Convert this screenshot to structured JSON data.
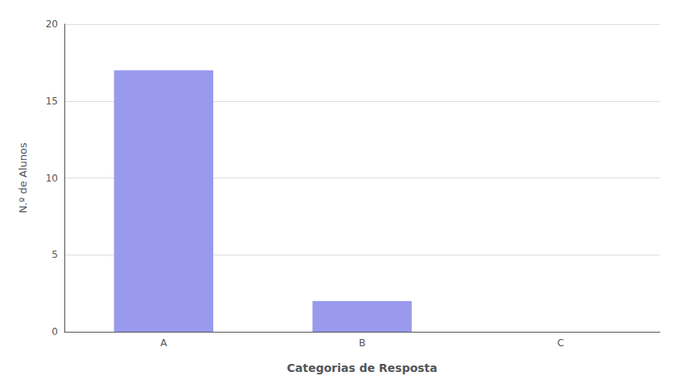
{
  "chart_data": {
    "type": "bar",
    "categories": [
      "A",
      "B",
      "C"
    ],
    "values": [
      17,
      2,
      0
    ],
    "color": "#9999ee",
    "xlabel": "Categorias de Resposta",
    "ylabel": "N.º de Alunos",
    "ylim": [
      0,
      20
    ],
    "yticks": [
      0,
      5,
      10,
      15,
      20
    ],
    "grid": true
  }
}
